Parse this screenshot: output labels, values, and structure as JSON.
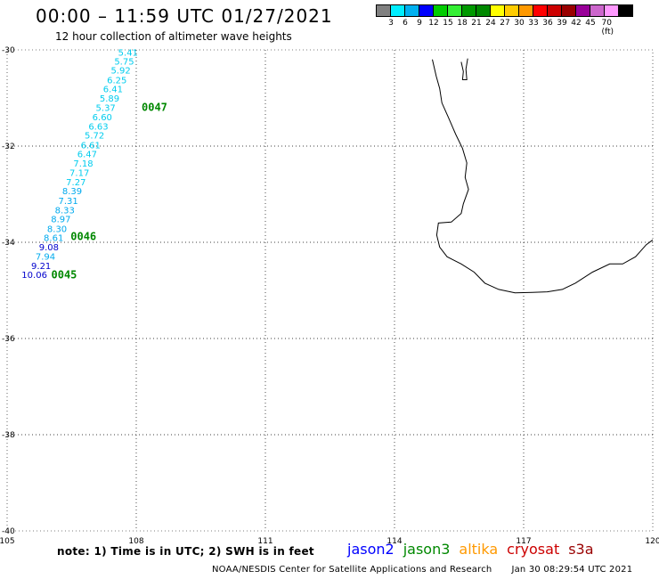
{
  "header": {
    "title": "00:00 – 11:59 UTC 01/27/2021",
    "subtitle": "12 hour collection of altimeter wave heights"
  },
  "legend_scale": {
    "colors": [
      "#808080",
      "#00eeff",
      "#00b0f0",
      "#0000ff",
      "#00cc00",
      "#33ee33",
      "#009900",
      "#008800",
      "#ffff00",
      "#ffcc00",
      "#ff9900",
      "#ff0000",
      "#cc0000",
      "#990000",
      "#990099",
      "#cc66cc",
      "#ff99ff",
      "#000000"
    ],
    "labels": [
      "3",
      "6",
      "9",
      "12",
      "15",
      "18",
      "21",
      "24",
      "27",
      "30",
      "33",
      "36",
      "39",
      "42",
      "45",
      "70 (ft)"
    ]
  },
  "axes": {
    "lat_labels": [
      "-30",
      "-32",
      "-34",
      "-36",
      "-38",
      "-40"
    ],
    "lon_labels": [
      "105",
      "108",
      "111",
      "114",
      "117",
      "120"
    ]
  },
  "observations": [
    {
      "lon": 108.04,
      "lat": -30.05,
      "value": "5.41",
      "color": "#00ccee"
    },
    {
      "lon": 107.95,
      "lat": -30.23,
      "value": "5.75",
      "color": "#00ccee"
    },
    {
      "lon": 107.87,
      "lat": -30.42,
      "value": "5.92",
      "color": "#00ccee"
    },
    {
      "lon": 107.78,
      "lat": -30.62,
      "value": "6.25",
      "color": "#00ccee"
    },
    {
      "lon": 107.69,
      "lat": -30.81,
      "value": "6.41",
      "color": "#00ccee"
    },
    {
      "lon": 107.61,
      "lat": -31.0,
      "value": "5.89",
      "color": "#00ccee"
    },
    {
      "lon": 107.52,
      "lat": -31.19,
      "value": "5.37",
      "color": "#00ccee"
    },
    {
      "lon": 107.44,
      "lat": -31.39,
      "value": "6.60",
      "color": "#00ccee"
    },
    {
      "lon": 107.35,
      "lat": -31.58,
      "value": "6.63",
      "color": "#00ccee"
    },
    {
      "lon": 107.26,
      "lat": -31.77,
      "value": "5.72",
      "color": "#00ccee"
    },
    {
      "lon": 107.17,
      "lat": -31.97,
      "value": "6.61",
      "color": "#00ccee"
    },
    {
      "lon": 107.09,
      "lat": -32.16,
      "value": "6.47",
      "color": "#00ccee"
    },
    {
      "lon": 107.0,
      "lat": -32.35,
      "value": "7.18",
      "color": "#00ccee"
    },
    {
      "lon": 106.91,
      "lat": -32.55,
      "value": "7.17",
      "color": "#00ccee"
    },
    {
      "lon": 106.83,
      "lat": -32.74,
      "value": "7.27",
      "color": "#00ccee"
    },
    {
      "lon": 106.74,
      "lat": -32.93,
      "value": "8.39",
      "color": "#00aaee"
    },
    {
      "lon": 106.65,
      "lat": -33.13,
      "value": "7.31",
      "color": "#00aaee"
    },
    {
      "lon": 106.57,
      "lat": -33.32,
      "value": "8.33",
      "color": "#00aaee"
    },
    {
      "lon": 106.48,
      "lat": -33.51,
      "value": "8.97",
      "color": "#00aaee"
    },
    {
      "lon": 106.39,
      "lat": -33.71,
      "value": "8.30",
      "color": "#00aaee"
    },
    {
      "lon": 106.31,
      "lat": -33.9,
      "value": "8.61",
      "color": "#00aaee"
    },
    {
      "lon": 106.2,
      "lat": -34.09,
      "value": "9.08",
      "color": "#0000cc"
    },
    {
      "lon": 106.12,
      "lat": -34.29,
      "value": "7.94",
      "color": "#00aaee"
    },
    {
      "lon": 106.02,
      "lat": -34.48,
      "value": "9.21",
      "color": "#0000cc"
    },
    {
      "lon": 105.93,
      "lat": -34.67,
      "value": "10.06",
      "color": "#0000cc"
    }
  ],
  "time_labels": [
    {
      "lon": 108.0,
      "lat": -31.19,
      "text": "0047",
      "color": "#008800"
    },
    {
      "lon": 106.35,
      "lat": -33.88,
      "text": "0046",
      "color": "#008800"
    },
    {
      "lon": 105.9,
      "lat": -34.68,
      "text": "0045",
      "color": "#008800"
    }
  ],
  "coast": [
    [
      [
        114.88,
        -30.2
      ],
      [
        114.97,
        -30.55
      ],
      [
        115.05,
        -30.8
      ],
      [
        115.1,
        -31.1
      ],
      [
        115.25,
        -31.4
      ],
      [
        115.42,
        -31.75
      ],
      [
        115.58,
        -32.05
      ],
      [
        115.68,
        -32.35
      ],
      [
        115.64,
        -32.65
      ],
      [
        115.72,
        -32.9
      ],
      [
        115.6,
        -33.2
      ],
      [
        115.55,
        -33.4
      ],
      [
        115.32,
        -33.58
      ],
      [
        115.02,
        -33.6
      ],
      [
        114.98,
        -33.85
      ],
      [
        115.05,
        -34.1
      ],
      [
        115.22,
        -34.3
      ],
      [
        115.55,
        -34.45
      ],
      [
        115.85,
        -34.62
      ],
      [
        116.1,
        -34.85
      ],
      [
        116.42,
        -34.98
      ],
      [
        116.8,
        -35.05
      ],
      [
        117.2,
        -35.04
      ],
      [
        117.55,
        -35.03
      ],
      [
        117.9,
        -34.98
      ],
      [
        118.2,
        -34.85
      ],
      [
        118.6,
        -34.62
      ],
      [
        119.0,
        -34.45
      ],
      [
        119.3,
        -34.45
      ],
      [
        119.6,
        -34.3
      ],
      [
        119.85,
        -34.05
      ],
      [
        120.0,
        -33.95
      ]
    ],
    [
      [
        115.55,
        -30.25
      ],
      [
        115.6,
        -30.45
      ],
      [
        115.58,
        -30.62
      ],
      [
        115.68,
        -30.62
      ],
      [
        115.66,
        -30.4
      ],
      [
        115.7,
        -30.18
      ]
    ]
  ],
  "notes": {
    "note_text": "note:  1) Time is in UTC;  2) SWH is in feet",
    "satellites": [
      {
        "name": "jason2",
        "color": "#0000ff"
      },
      {
        "name": "jason3",
        "color": "#008800"
      },
      {
        "name": "altika",
        "color": "#ff9900"
      },
      {
        "name": "cryosat",
        "color": "#cc0000"
      },
      {
        "name": "s3a",
        "color": "#990000"
      }
    ],
    "credit": "NOAA/NESDIS Center for Satellite Applications and Research",
    "timestamp": "Jan 30 08:29:54 UTC 2021"
  }
}
